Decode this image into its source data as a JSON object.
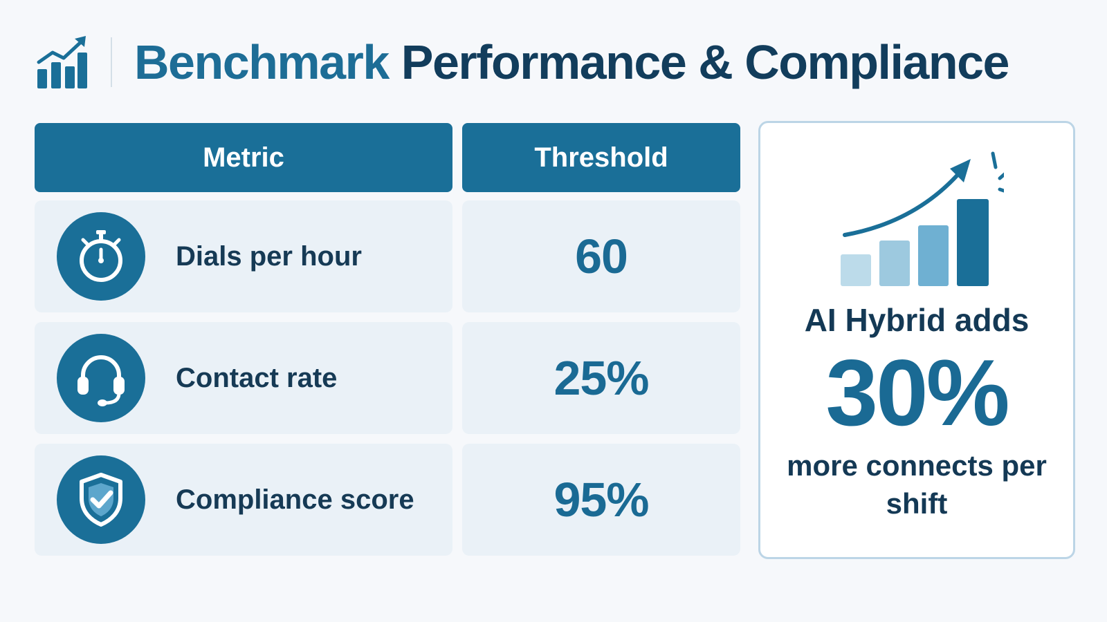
{
  "header": {
    "icon": "bar-chart-trend-icon",
    "title_strong": "Benchmark",
    "title_rest": "Performance & Compliance"
  },
  "table": {
    "columns": [
      "Metric",
      "Threshold"
    ],
    "rows": [
      {
        "icon": "stopwatch-icon",
        "metric": "Dials per hour",
        "threshold": "60"
      },
      {
        "icon": "headset-icon",
        "metric": "Contact rate",
        "threshold": "25%"
      },
      {
        "icon": "shield-check-icon",
        "metric": "Compliance score",
        "threshold": "95%"
      }
    ]
  },
  "callout": {
    "icon": "growth-bars-arrow-icon",
    "lead": "AI Hybrid adds",
    "value": "30%",
    "tail": "more connects per shift"
  },
  "colors": {
    "primary": "#1a6f98",
    "title_dark": "#123d5c",
    "cell_bg": "#eaf1f7",
    "page_bg": "#f6f8fb",
    "bar_light_1": "#bcdbea",
    "bar_light_2": "#9dc9df",
    "bar_light_3": "#6fb0d2"
  }
}
